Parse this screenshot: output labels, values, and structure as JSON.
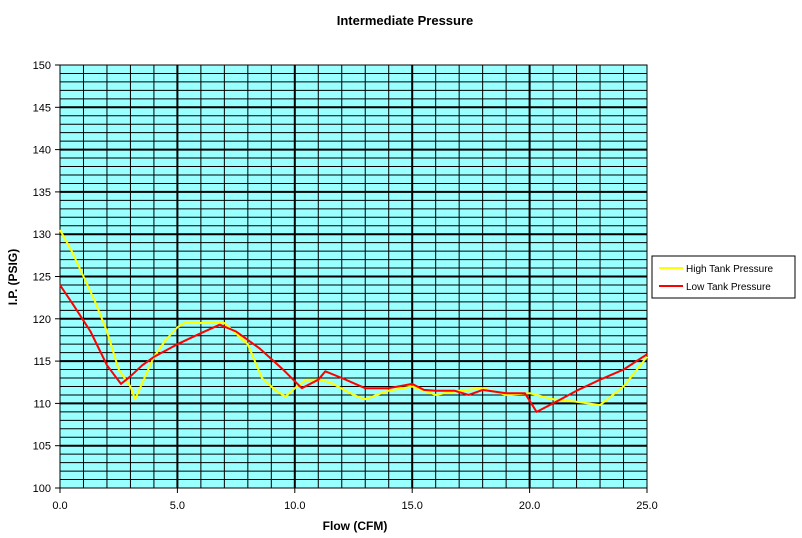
{
  "chart_data": {
    "type": "line",
    "title": "Intermediate Pressure",
    "xlabel": "Flow (CFM)",
    "ylabel": "I.P. (PSIG)",
    "xlim": [
      0,
      25
    ],
    "ylim": [
      100,
      150
    ],
    "x_ticks": [
      "0.0",
      "5.0",
      "10.0",
      "15.0",
      "20.0",
      "25.0"
    ],
    "y_ticks": [
      "100",
      "105",
      "110",
      "115",
      "120",
      "125",
      "130",
      "135",
      "140",
      "145",
      "150"
    ],
    "grid": true,
    "plot_background": "#99ffff",
    "legend_position": "right",
    "series": [
      {
        "name": "High Tank Pressure",
        "color": "#ffff00",
        "points": [
          [
            0.0,
            130.5
          ],
          [
            0.5,
            128.0
          ],
          [
            1.0,
            125.0
          ],
          [
            1.5,
            122.0
          ],
          [
            2.0,
            118.5
          ],
          [
            2.5,
            114.0
          ],
          [
            3.0,
            112.0
          ],
          [
            3.2,
            110.5
          ],
          [
            3.6,
            113.0
          ],
          [
            4.0,
            115.5
          ],
          [
            4.5,
            117.5
          ],
          [
            5.0,
            119.0
          ],
          [
            5.3,
            119.5
          ],
          [
            6.0,
            119.5
          ],
          [
            7.0,
            119.5
          ],
          [
            8.0,
            117.0
          ],
          [
            8.6,
            113.0
          ],
          [
            9.2,
            111.5
          ],
          [
            9.6,
            110.8
          ],
          [
            10.0,
            111.8
          ],
          [
            10.5,
            112.8
          ],
          [
            11.0,
            112.8
          ],
          [
            11.5,
            112.5
          ],
          [
            12.5,
            111.0
          ],
          [
            13.0,
            110.5
          ],
          [
            14.0,
            111.5
          ],
          [
            15.0,
            112.0
          ],
          [
            16.0,
            111.0
          ],
          [
            17.0,
            111.5
          ],
          [
            18.0,
            111.8
          ],
          [
            19.0,
            111.0
          ],
          [
            20.0,
            111.2
          ],
          [
            21.0,
            110.5
          ],
          [
            22.0,
            110.2
          ],
          [
            23.0,
            109.8
          ],
          [
            24.0,
            112.0
          ],
          [
            25.0,
            115.5
          ]
        ]
      },
      {
        "name": "Low Tank Pressure",
        "color": "#ff0000",
        "points": [
          [
            0.0,
            124.0
          ],
          [
            0.6,
            121.5
          ],
          [
            1.3,
            118.5
          ],
          [
            2.0,
            114.5
          ],
          [
            2.6,
            112.3
          ],
          [
            3.0,
            113.2
          ],
          [
            3.5,
            114.5
          ],
          [
            4.0,
            115.5
          ],
          [
            5.0,
            117.0
          ],
          [
            6.0,
            118.3
          ],
          [
            6.8,
            119.3
          ],
          [
            7.5,
            118.5
          ],
          [
            8.5,
            116.5
          ],
          [
            9.5,
            114.0
          ],
          [
            10.3,
            111.8
          ],
          [
            11.0,
            112.8
          ],
          [
            11.3,
            113.8
          ],
          [
            12.0,
            113.0
          ],
          [
            13.0,
            111.8
          ],
          [
            14.0,
            111.8
          ],
          [
            15.0,
            112.3
          ],
          [
            15.5,
            111.6
          ],
          [
            16.0,
            111.5
          ],
          [
            16.8,
            111.5
          ],
          [
            17.4,
            111.0
          ],
          [
            18.0,
            111.6
          ],
          [
            19.0,
            111.2
          ],
          [
            19.8,
            111.2
          ],
          [
            20.3,
            109.0
          ],
          [
            21.0,
            110.0
          ],
          [
            22.0,
            111.5
          ],
          [
            23.0,
            112.8
          ],
          [
            24.0,
            114.0
          ],
          [
            25.0,
            115.8
          ]
        ]
      }
    ]
  }
}
